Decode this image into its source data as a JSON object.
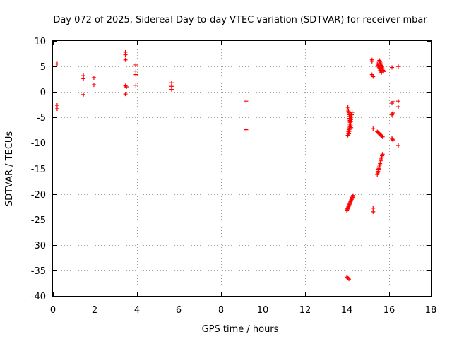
{
  "chart_data": {
    "type": "scatter",
    "title": "Day 072 of 2025, Sidereal Day-to-day VTEC variation (SDTVAR) for receiver mbar",
    "xlabel": "GPS time / hours",
    "ylabel": "SDTVAR / TECUs",
    "xlim": [
      0,
      18
    ],
    "ylim": [
      -40,
      10
    ],
    "xticks": [
      0,
      2,
      4,
      6,
      8,
      10,
      12,
      14,
      16,
      18
    ],
    "yticks": [
      10,
      5,
      0,
      -5,
      -10,
      -15,
      -20,
      -25,
      -30,
      -35,
      -40
    ],
    "grid": true,
    "marker": "+",
    "marker_color": "#ff0000",
    "grid_color": "#a0a0a0",
    "series": [
      {
        "name": "SDTVAR",
        "segments": [
          {
            "x": [
              0.2
            ],
            "y": [
              5.5
            ]
          },
          {
            "x": [
              0.2,
              0.2
            ],
            "y": [
              -2.6,
              -3.3
            ]
          },
          {
            "x": [
              1.45,
              1.45
            ],
            "y": [
              3.2,
              2.6
            ]
          },
          {
            "x": [
              1.45
            ],
            "y": [
              -0.5
            ]
          },
          {
            "x": [
              1.95,
              1.95
            ],
            "y": [
              2.8,
              1.4
            ]
          },
          {
            "x": [
              3.45,
              3.45,
              3.45
            ],
            "y": [
              7.8,
              7.3,
              6.3
            ]
          },
          {
            "x": [
              3.45,
              3.5
            ],
            "y": [
              1.2,
              1.0
            ]
          },
          {
            "x": [
              3.45
            ],
            "y": [
              -0.4
            ]
          },
          {
            "x": [
              3.95,
              3.95,
              3.95,
              3.95
            ],
            "y": [
              5.3,
              4.1,
              3.4,
              1.3
            ]
          },
          {
            "x": [
              5.65,
              5.65,
              5.65
            ],
            "y": [
              1.8,
              1.1,
              0.5
            ]
          },
          {
            "x": [
              9.2
            ],
            "y": [
              -1.8
            ]
          },
          {
            "x": [
              9.2
            ],
            "y": [
              -7.4
            ]
          },
          {
            "x": [
              14.05,
              14.2
            ],
            "y": [
              -3.0,
              -7.0
            ],
            "n": 12
          },
          {
            "x": [
              14.2,
              14.05
            ],
            "y": [
              -4.5,
              -8.5
            ],
            "n": 12
          },
          {
            "x": [
              14.25,
              14.1
            ],
            "y": [
              -4.0,
              -8.2
            ],
            "n": 10
          },
          {
            "x": [
              14.0,
              14.3
            ],
            "y": [
              -23.3,
              -20.3
            ],
            "n": 16
          },
          {
            "x": [
              14.0,
              14.1
            ],
            "y": [
              -36.3,
              -36.7
            ],
            "n": 3
          },
          {
            "x": [
              15.2,
              15.2
            ],
            "y": [
              6.3,
              6.0
            ],
            "n": 2
          },
          {
            "x": [
              15.2,
              15.25
            ],
            "y": [
              3.4,
              3.0
            ],
            "n": 2
          },
          {
            "x": [
              15.55,
              15.75
            ],
            "y": [
              6.2,
              4.0
            ],
            "n": 10
          },
          {
            "x": [
              15.45,
              15.65
            ],
            "y": [
              5.5,
              3.8
            ],
            "n": 8
          },
          {
            "x": [
              15.25
            ],
            "y": [
              -7.2
            ]
          },
          {
            "x": [
              15.45,
              15.7
            ],
            "y": [
              -7.8,
              -8.8
            ],
            "n": 8
          },
          {
            "x": [
              15.45,
              15.7
            ],
            "y": [
              -16.2,
              -12.2
            ],
            "n": 14
          },
          {
            "x": [
              15.25,
              15.25
            ],
            "y": [
              -22.8,
              -23.5
            ],
            "n": 2
          },
          {
            "x": [
              16.15
            ],
            "y": [
              4.8
            ]
          },
          {
            "x": [
              16.45
            ],
            "y": [
              5.0
            ]
          },
          {
            "x": [
              16.2,
              16.15
            ],
            "y": [
              -1.9,
              -2.2
            ],
            "n": 2
          },
          {
            "x": [
              16.2,
              16.15
            ],
            "y": [
              -4.0,
              -4.5
            ],
            "n": 3
          },
          {
            "x": [
              16.15,
              16.2
            ],
            "y": [
              -9.1,
              -9.5
            ],
            "n": 3
          },
          {
            "x": [
              16.45
            ],
            "y": [
              -1.8
            ]
          },
          {
            "x": [
              16.45
            ],
            "y": [
              -2.9
            ]
          },
          {
            "x": [
              16.45
            ],
            "y": [
              -10.5
            ]
          }
        ]
      }
    ]
  }
}
